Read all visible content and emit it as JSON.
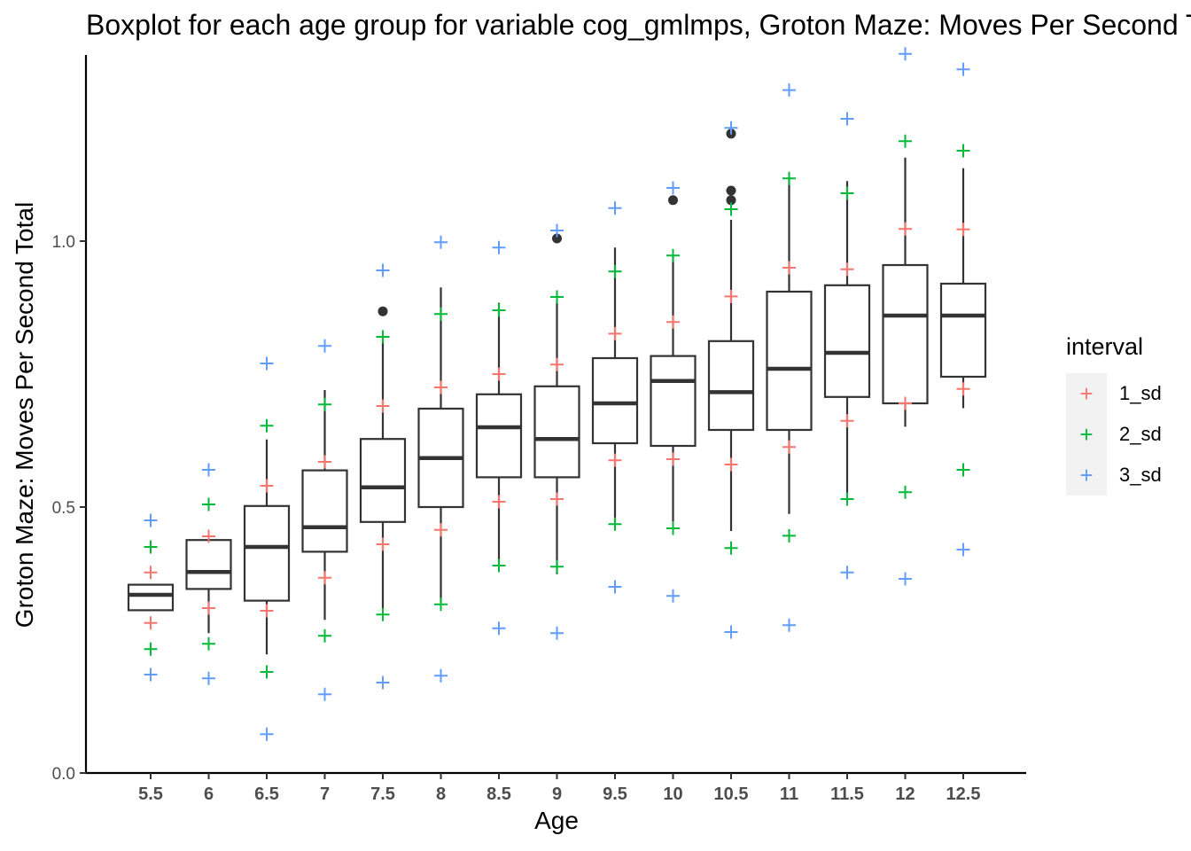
{
  "chart_data": {
    "type": "boxplot",
    "title": "Boxplot for each age group for variable cog_gmlmps, Groton Maze: Moves Per Second Total",
    "xlabel": "Age",
    "ylabel": "Groton Maze: Moves Per Second Total",
    "ylim": [
      0.0,
      1.35
    ],
    "y_ticks": [
      "0.0",
      "0.5",
      "1.0"
    ],
    "y_tick_values": [
      0.0,
      0.5,
      1.0
    ],
    "categories": [
      "5.5",
      "6",
      "6.5",
      "7",
      "7.5",
      "8",
      "8.5",
      "9",
      "9.5",
      "10",
      "10.5",
      "11",
      "11.5",
      "12",
      "12.5"
    ],
    "boxes": [
      {
        "q1": 0.306,
        "median": 0.335,
        "q3": 0.354,
        "whisker_low": 0.306,
        "whisker_high": 0.354,
        "outliers": []
      },
      {
        "q1": 0.346,
        "median": 0.378,
        "q3": 0.438,
        "whisker_low": 0.263,
        "whisker_high": 0.438,
        "outliers": []
      },
      {
        "q1": 0.324,
        "median": 0.425,
        "q3": 0.502,
        "whisker_low": 0.223,
        "whisker_high": 0.627,
        "outliers": []
      },
      {
        "q1": 0.416,
        "median": 0.462,
        "q3": 0.569,
        "whisker_low": 0.288,
        "whisker_high": 0.72,
        "outliers": []
      },
      {
        "q1": 0.472,
        "median": 0.537,
        "q3": 0.628,
        "whisker_low": 0.306,
        "whisker_high": 0.818,
        "outliers": [
          0.868
        ]
      },
      {
        "q1": 0.5,
        "median": 0.592,
        "q3": 0.685,
        "whisker_low": 0.321,
        "whisker_high": 0.913,
        "outliers": []
      },
      {
        "q1": 0.556,
        "median": 0.65,
        "q3": 0.712,
        "whisker_low": 0.388,
        "whisker_high": 0.884,
        "outliers": []
      },
      {
        "q1": 0.556,
        "median": 0.628,
        "q3": 0.727,
        "whisker_low": 0.374,
        "whisker_high": 0.888,
        "outliers": [
          1.005
        ]
      },
      {
        "q1": 0.62,
        "median": 0.695,
        "q3": 0.78,
        "whisker_low": 0.472,
        "whisker_high": 0.988,
        "outliers": []
      },
      {
        "q1": 0.615,
        "median": 0.737,
        "q3": 0.784,
        "whisker_low": 0.473,
        "whisker_high": 0.974,
        "outliers": [
          1.077
        ]
      },
      {
        "q1": 0.645,
        "median": 0.716,
        "q3": 0.812,
        "whisker_low": 0.455,
        "whisker_high": 1.04,
        "outliers": [
          1.077,
          1.095,
          1.202
        ]
      },
      {
        "q1": 0.645,
        "median": 0.76,
        "q3": 0.905,
        "whisker_low": 0.487,
        "whisker_high": 1.12,
        "outliers": []
      },
      {
        "q1": 0.707,
        "median": 0.79,
        "q3": 0.917,
        "whisker_low": 0.523,
        "whisker_high": 1.113,
        "outliers": []
      },
      {
        "q1": 0.695,
        "median": 0.86,
        "q3": 0.955,
        "whisker_low": 0.651,
        "whisker_high": 1.157,
        "outliers": []
      },
      {
        "q1": 0.745,
        "median": 0.86,
        "q3": 0.92,
        "whisker_low": 0.686,
        "whisker_high": 1.137,
        "outliers": []
      }
    ],
    "legend": {
      "title": "interval",
      "position": "right",
      "entries": [
        {
          "name": "1_sd",
          "color": "#F8766D"
        },
        {
          "name": "2_sd",
          "color": "#00BA38"
        },
        {
          "name": "3_sd",
          "color": "#619CFF"
        }
      ]
    },
    "series": [
      {
        "name": "1_sd",
        "color": "#F8766D",
        "upper": [
          0.377,
          0.445,
          0.54,
          0.585,
          0.69,
          0.725,
          0.75,
          0.768,
          0.826,
          0.848,
          0.896,
          0.95,
          0.947,
          1.023,
          1.022
        ],
        "lower": [
          0.282,
          0.31,
          0.305,
          0.367,
          0.43,
          0.457,
          0.51,
          0.515,
          0.588,
          0.59,
          0.58,
          0.613,
          0.662,
          0.695,
          0.722
        ]
      },
      {
        "name": "2_sd",
        "color": "#00BA38",
        "upper": [
          0.425,
          0.505,
          0.653,
          0.693,
          0.82,
          0.863,
          0.87,
          0.895,
          0.943,
          0.973,
          1.06,
          1.118,
          1.09,
          1.188,
          1.17
        ],
        "lower": [
          0.233,
          0.243,
          0.19,
          0.258,
          0.298,
          0.317,
          0.39,
          0.388,
          0.468,
          0.46,
          0.423,
          0.446,
          0.515,
          0.528,
          0.57
        ]
      },
      {
        "name": "3_sd",
        "color": "#619CFF",
        "upper": [
          0.475,
          0.57,
          0.77,
          0.803,
          0.945,
          0.998,
          0.988,
          1.02,
          1.062,
          1.1,
          1.213,
          1.284,
          1.23,
          1.352,
          1.323
        ],
        "lower": [
          0.185,
          0.178,
          0.073,
          0.148,
          0.17,
          0.183,
          0.272,
          0.263,
          0.35,
          0.333,
          0.265,
          0.278,
          0.377,
          0.365,
          0.42
        ]
      }
    ],
    "grid": false
  }
}
